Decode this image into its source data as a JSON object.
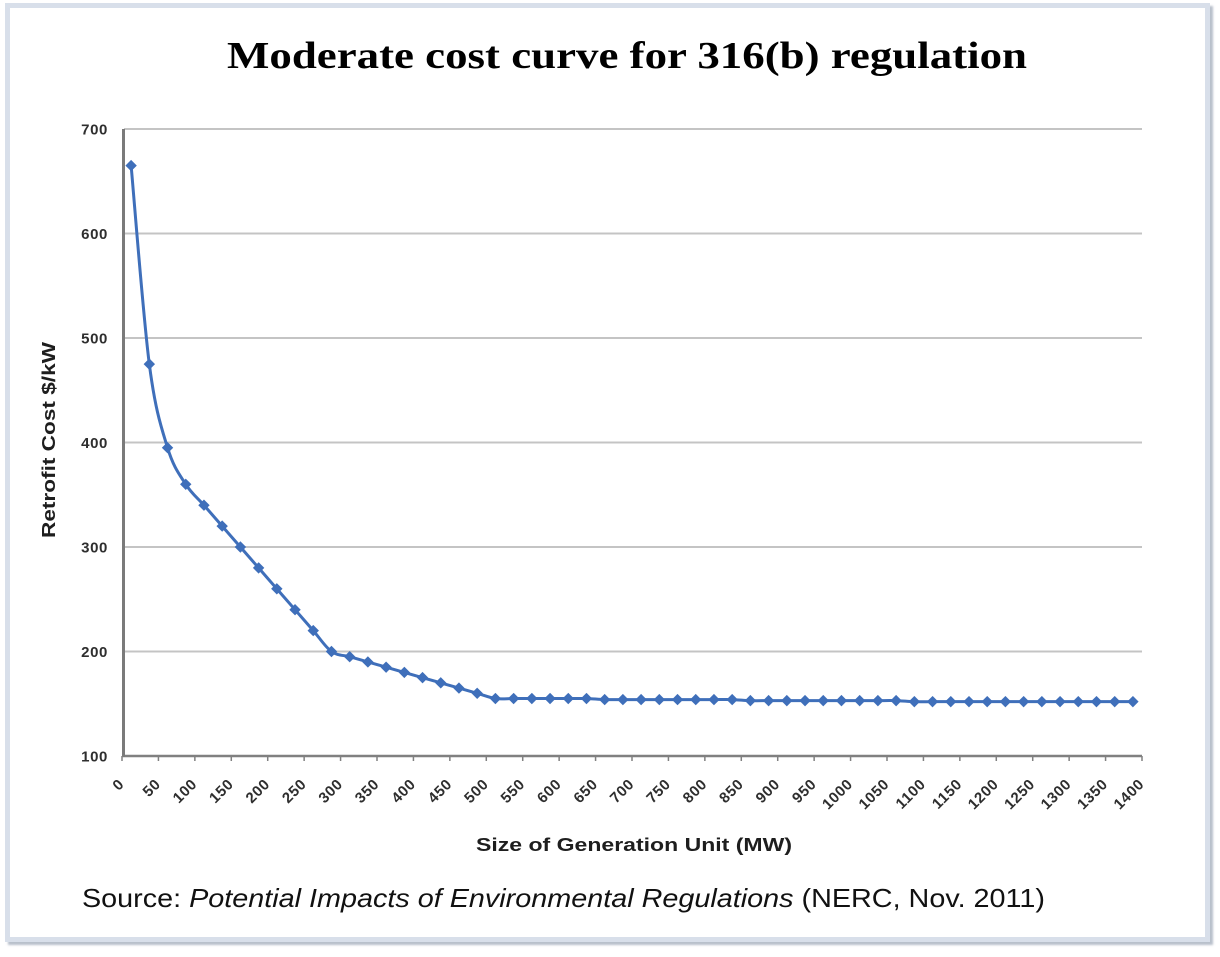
{
  "chart_data": {
    "type": "line",
    "title": "Moderate cost curve for 316(b) regulation",
    "xlabel": "Size of Generation Unit (MW)",
    "ylabel": "Retrofit Cost $/kW",
    "xlim": [
      0,
      1400
    ],
    "ylim": [
      100,
      700
    ],
    "x_ticks": [
      0,
      50,
      100,
      150,
      200,
      250,
      300,
      350,
      400,
      450,
      500,
      550,
      600,
      650,
      700,
      750,
      800,
      850,
      900,
      950,
      1000,
      1050,
      1100,
      1150,
      1200,
      1250,
      1300,
      1350,
      1400
    ],
    "y_ticks": [
      100,
      200,
      300,
      400,
      500,
      600,
      700
    ],
    "grid": "horizontal",
    "legend": "none",
    "series": [
      {
        "name": "Retrofit Cost $/kW",
        "color": "#3f6fba",
        "marker": "diamond",
        "smooth": true,
        "x": [
          12.5,
          37.5,
          62.5,
          87.5,
          112.5,
          137.5,
          162.5,
          187.5,
          212.5,
          237.5,
          262.5,
          287.5,
          312.5,
          337.5,
          362.5,
          387.5,
          412.5,
          437.5,
          462.5,
          487.5,
          512.5,
          537.5,
          562.5,
          587.5,
          612.5,
          637.5,
          662.5,
          687.5,
          712.5,
          737.5,
          762.5,
          787.5,
          812.5,
          837.5,
          862.5,
          887.5,
          912.5,
          937.5,
          962.5,
          987.5,
          1012.5,
          1037.5,
          1062.5,
          1087.5,
          1112.5,
          1137.5,
          1162.5,
          1187.5,
          1212.5,
          1237.5,
          1262.5,
          1287.5,
          1312.5,
          1337.5,
          1362.5,
          1387.5
        ],
        "y": [
          665,
          475,
          395,
          360,
          340,
          320,
          300,
          280,
          260,
          240,
          220,
          200,
          195,
          190,
          185,
          180,
          175,
          170,
          165,
          160,
          155,
          155,
          155,
          155,
          155,
          155,
          154,
          154,
          154,
          154,
          154,
          154,
          154,
          154,
          153,
          153,
          153,
          153,
          153,
          153,
          153,
          153,
          153,
          152,
          152,
          152,
          152,
          152,
          152,
          152,
          152,
          152,
          152,
          152,
          152,
          152
        ]
      }
    ]
  },
  "source": {
    "prefix": "Source: ",
    "title": "Potential Impacts of Environmental Regulations",
    "suffix": " (NERC, Nov. 2011)"
  },
  "colors": {
    "series": "#3f6fba",
    "gridline": "#c4c4c4",
    "axis": "#808080",
    "frame_border": "#d8dfea"
  }
}
